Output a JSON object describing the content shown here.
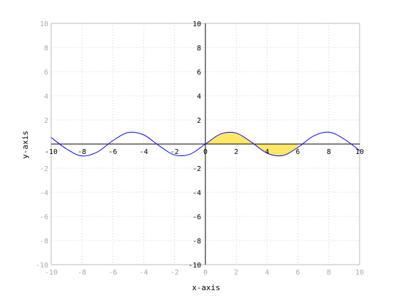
{
  "chart_data": {
    "type": "line",
    "title": "",
    "xlabel": "x-axis",
    "ylabel": "y-axis",
    "xlim": [
      -10,
      10
    ],
    "ylim": [
      -10,
      10
    ],
    "xticks": [
      -10,
      -8,
      -6,
      -4,
      -2,
      0,
      2,
      4,
      6,
      8,
      10
    ],
    "yticks": [
      -10,
      -8,
      -6,
      -4,
      -2,
      0,
      2,
      4,
      6,
      8,
      10
    ],
    "grid": true,
    "series": [
      {
        "function": "sin(x)",
        "color": "#0000ff",
        "x": [
          -10,
          -9,
          -8,
          -7,
          -6,
          -5,
          -4,
          -3,
          -2,
          -1,
          0,
          1,
          2,
          3,
          4,
          5,
          6,
          7,
          8,
          9,
          10
        ],
        "y": [
          0.544,
          -0.412,
          -0.989,
          -0.657,
          0.279,
          0.959,
          0.757,
          -0.141,
          -0.909,
          -0.841,
          0,
          0.841,
          0.909,
          0.141,
          -0.757,
          -0.959,
          -0.279,
          0.657,
          0.989,
          0.412,
          -0.544
        ]
      }
    ],
    "shaded_region": {
      "x_from": 0,
      "x_to": 6,
      "to_y": 0,
      "color": "#ffe866"
    },
    "axis_color": "#000000",
    "grid_color": "#cccccc",
    "frame_color": "#bbbbbb"
  }
}
